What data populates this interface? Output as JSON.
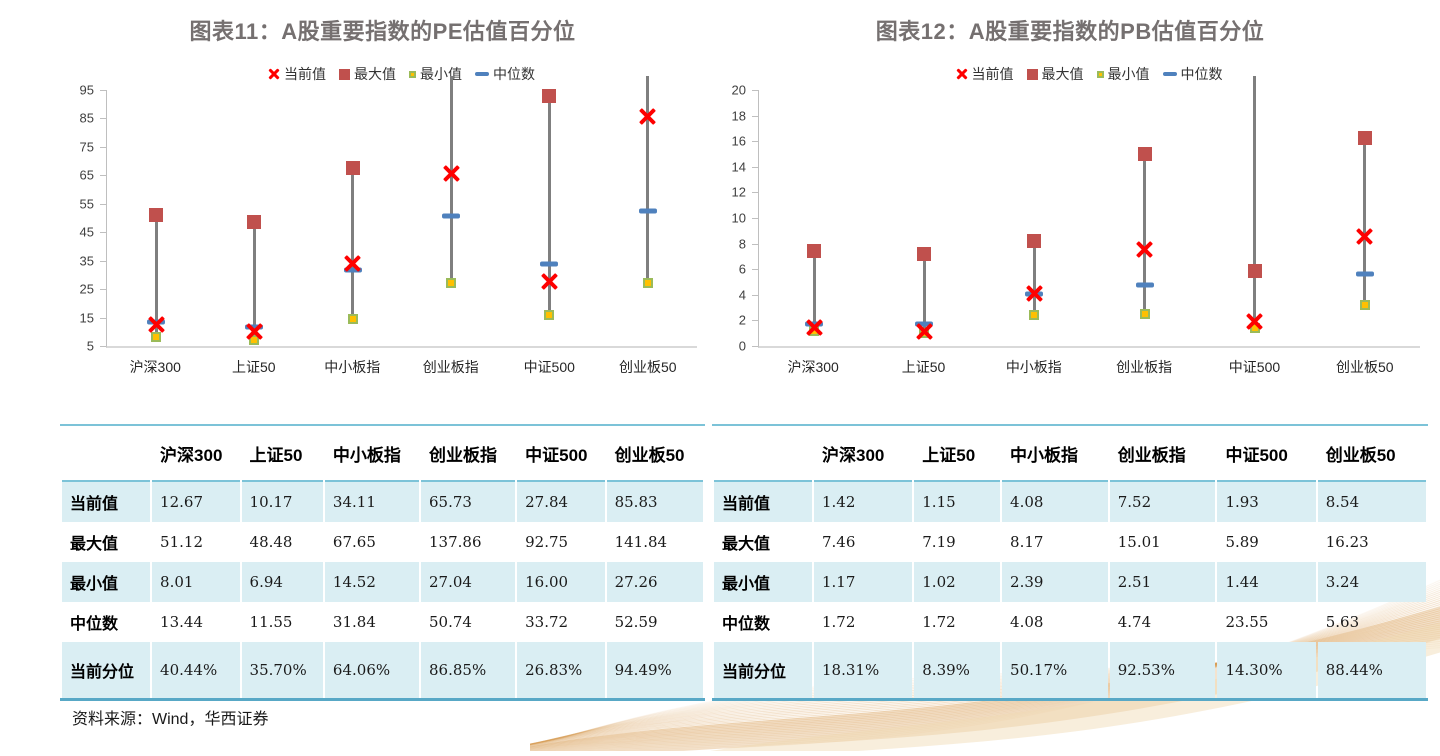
{
  "panels": [
    {
      "title": "图表11：A股重要指数的PE估值百分位"
    },
    {
      "title": "图表12：A股重要指数的PB估值百分位"
    }
  ],
  "source_note": "资料来源：Wind，华西证券",
  "colors": {
    "current": "#FE0000",
    "max": "#C0504D",
    "min_fill": "#FFC000",
    "min_border": "#9BBB59",
    "median": "#4F81BD",
    "title_grey": "#757070",
    "table_row_blue": "#DAEEF3",
    "table_border_blue": "#7CC3D8",
    "decor_gold": "#D79A4F"
  },
  "chart_data": [
    {
      "type": "stock-range",
      "title": "图表11：A股重要指数的PE估值百分位",
      "categories": [
        "沪深300",
        "上证50",
        "中小板指",
        "创业板指",
        "中证500",
        "创业板50"
      ],
      "series": [
        {
          "name": "当前值",
          "values": [
            12.67,
            10.17,
            34.11,
            65.73,
            27.84,
            85.83
          ]
        },
        {
          "name": "最大值",
          "values": [
            51.12,
            48.48,
            67.65,
            137.86,
            92.75,
            141.84
          ]
        },
        {
          "name": "最小值",
          "values": [
            8.01,
            6.94,
            14.52,
            27.04,
            16.0,
            27.26
          ]
        },
        {
          "name": "中位数",
          "values": [
            13.44,
            11.55,
            31.84,
            50.74,
            33.72,
            52.59
          ]
        }
      ],
      "ylim": [
        5,
        95
      ],
      "yticks": [
        5,
        15,
        25,
        35,
        45,
        55,
        65,
        75,
        85,
        95
      ],
      "legend_position": "top",
      "grid": false
    },
    {
      "type": "stock-range",
      "title": "图表12：A股重要指数的PB估值百分位",
      "categories": [
        "沪深300",
        "上证50",
        "中小板指",
        "创业板指",
        "中证500",
        "创业板50"
      ],
      "series": [
        {
          "name": "当前值",
          "values": [
            1.42,
            1.15,
            4.08,
            7.52,
            1.93,
            8.54
          ]
        },
        {
          "name": "最大值",
          "values": [
            7.46,
            7.19,
            8.17,
            15.01,
            5.89,
            16.23
          ]
        },
        {
          "name": "最小值",
          "values": [
            1.17,
            1.02,
            2.39,
            2.51,
            1.44,
            3.24
          ]
        },
        {
          "name": "中位数",
          "values": [
            1.72,
            1.72,
            4.08,
            4.74,
            23.55,
            5.63
          ]
        }
      ],
      "ylim": [
        0,
        20
      ],
      "yticks": [
        0,
        2,
        4,
        6,
        8,
        10,
        12,
        14,
        16,
        18,
        20
      ],
      "legend_position": "top",
      "grid": false
    }
  ],
  "tables": [
    {
      "columns": [
        "沪深300",
        "上证50",
        "中小板指",
        "创业板指",
        "中证500",
        "创业板50"
      ],
      "rows": [
        {
          "label": "当前值",
          "values": [
            "12.67",
            "10.17",
            "34.11",
            "65.73",
            "27.84",
            "85.83"
          ]
        },
        {
          "label": "最大值",
          "values": [
            "51.12",
            "48.48",
            "67.65",
            "137.86",
            "92.75",
            "141.84"
          ]
        },
        {
          "label": "最小值",
          "values": [
            "8.01",
            "6.94",
            "14.52",
            "27.04",
            "16.00",
            "27.26"
          ]
        },
        {
          "label": "中位数",
          "values": [
            "13.44",
            "11.55",
            "31.84",
            "50.74",
            "33.72",
            "52.59"
          ]
        },
        {
          "label": "当前分位",
          "values": [
            "40.44%",
            "35.70%",
            "64.06%",
            "86.85%",
            "26.83%",
            "94.49%"
          ]
        }
      ]
    },
    {
      "columns": [
        "沪深300",
        "上证50",
        "中小板指",
        "创业板指",
        "中证500",
        "创业板50"
      ],
      "rows": [
        {
          "label": "当前值",
          "values": [
            "1.42",
            "1.15",
            "4.08",
            "7.52",
            "1.93",
            "8.54"
          ]
        },
        {
          "label": "最大值",
          "values": [
            "7.46",
            "7.19",
            "8.17",
            "15.01",
            "5.89",
            "16.23"
          ]
        },
        {
          "label": "最小值",
          "values": [
            "1.17",
            "1.02",
            "2.39",
            "2.51",
            "1.44",
            "3.24"
          ]
        },
        {
          "label": "中位数",
          "values": [
            "1.72",
            "1.72",
            "4.08",
            "4.74",
            "23.55",
            "5.63"
          ]
        },
        {
          "label": "当前分位",
          "values": [
            "18.31%",
            "8.39%",
            "50.17%",
            "92.53%",
            "14.30%",
            "88.44%"
          ]
        }
      ]
    }
  ]
}
